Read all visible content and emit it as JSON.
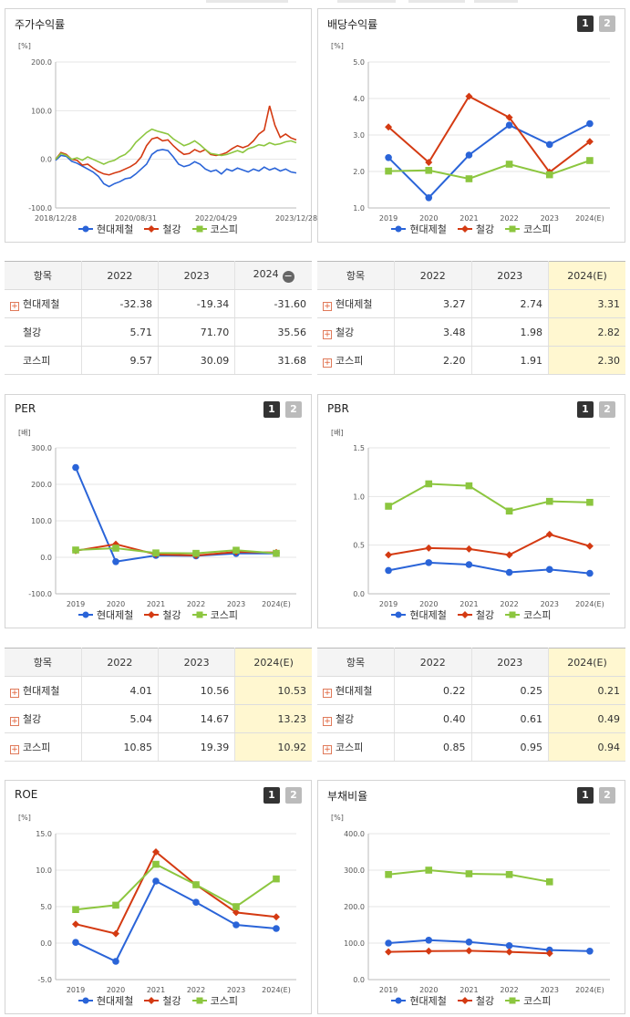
{
  "colors": {
    "hyundai": "#2a64d8",
    "steel": "#d43a12",
    "kospi": "#8cc63f"
  },
  "legend": [
    "현대제철",
    "철강",
    "코스피"
  ],
  "pager": [
    "1",
    "2"
  ],
  "table_header": {
    "label": "항목",
    "y1": "2022",
    "y2": "2023",
    "y3": "2024",
    "y3e": "2024(E)"
  },
  "tables": {
    "stock": [
      {
        "name": "현대제철",
        "v": [
          "-32.38",
          "-19.34",
          "-31.60"
        ],
        "plus": true
      },
      {
        "name": "철강",
        "v": [
          "5.71",
          "71.70",
          "35.56"
        ],
        "plus": false
      },
      {
        "name": "코스피",
        "v": [
          "9.57",
          "30.09",
          "31.68"
        ],
        "plus": false
      }
    ],
    "div": [
      {
        "name": "현대제철",
        "v": [
          "3.27",
          "2.74",
          "3.31"
        ],
        "plus": true
      },
      {
        "name": "철강",
        "v": [
          "3.48",
          "1.98",
          "2.82"
        ],
        "plus": true
      },
      {
        "name": "코스피",
        "v": [
          "2.20",
          "1.91",
          "2.30"
        ],
        "plus": true
      }
    ],
    "per": [
      {
        "name": "현대제철",
        "v": [
          "4.01",
          "10.56",
          "10.53"
        ],
        "plus": true
      },
      {
        "name": "철강",
        "v": [
          "5.04",
          "14.67",
          "13.23"
        ],
        "plus": true
      },
      {
        "name": "코스피",
        "v": [
          "10.85",
          "19.39",
          "10.92"
        ],
        "plus": true
      }
    ],
    "pbr": [
      {
        "name": "현대제철",
        "v": [
          "0.22",
          "0.25",
          "0.21"
        ],
        "plus": true
      },
      {
        "name": "철강",
        "v": [
          "0.40",
          "0.61",
          "0.49"
        ],
        "plus": true
      },
      {
        "name": "코스피",
        "v": [
          "0.85",
          "0.95",
          "0.94"
        ],
        "plus": true
      }
    ]
  },
  "chart_data": [
    {
      "id": "stock",
      "type": "line",
      "title": "주가수익률",
      "unit": "[%]",
      "ylim": [
        -100,
        200
      ],
      "yticks": [
        "200.0",
        "100.0",
        "0.0",
        "-100.0"
      ],
      "xticks": [
        "2018/12/28",
        "2020/08/31",
        "2022/04/29",
        "2023/12/28"
      ],
      "series": [
        {
          "name": "현대제철",
          "values": [
            -2,
            8,
            6,
            -4,
            -8,
            -14,
            -20,
            -26,
            -35,
            -50,
            -56,
            -50,
            -46,
            -40,
            -38,
            -30,
            -20,
            -10,
            10,
            18,
            20,
            18,
            5,
            -10,
            -15,
            -12,
            -5,
            -10,
            -20,
            -25,
            -22,
            -30,
            -20,
            -24,
            -18,
            -22,
            -26,
            -20,
            -24,
            -16,
            -22,
            -18,
            -24,
            -20,
            -26,
            -28
          ]
        },
        {
          "name": "철강",
          "values": [
            0,
            14,
            10,
            0,
            -2,
            -12,
            -10,
            -18,
            -25,
            -30,
            -32,
            -28,
            -25,
            -20,
            -15,
            -8,
            5,
            28,
            42,
            45,
            38,
            40,
            28,
            18,
            10,
            12,
            20,
            15,
            20,
            10,
            8,
            10,
            14,
            22,
            28,
            24,
            28,
            38,
            52,
            60,
            110,
            70,
            45,
            52,
            44,
            40
          ]
        },
        {
          "name": "코스피",
          "values": [
            0,
            12,
            8,
            0,
            3,
            -2,
            5,
            0,
            -5,
            -10,
            -5,
            -2,
            5,
            10,
            20,
            35,
            45,
            55,
            62,
            58,
            55,
            52,
            42,
            35,
            28,
            32,
            38,
            30,
            20,
            12,
            10,
            8,
            10,
            14,
            18,
            14,
            22,
            25,
            30,
            28,
            34,
            30,
            32,
            36,
            38,
            34
          ]
        }
      ]
    },
    {
      "id": "div",
      "type": "line",
      "title": "배당수익률",
      "unit": "[%]",
      "ylim": [
        1,
        5
      ],
      "yticks": [
        "5.0",
        "4.0",
        "3.0",
        "2.0",
        "1.0"
      ],
      "categories": [
        "2019",
        "2020",
        "2021",
        "2022",
        "2023",
        "2024(E)"
      ],
      "series": [
        {
          "name": "현대제철",
          "values": [
            2.38,
            1.28,
            2.45,
            3.27,
            2.74,
            3.31
          ]
        },
        {
          "name": "철강",
          "values": [
            3.22,
            2.25,
            4.06,
            3.48,
            1.98,
            2.82
          ]
        },
        {
          "name": "코스피",
          "values": [
            2.01,
            2.03,
            1.8,
            2.2,
            1.91,
            2.3
          ]
        }
      ]
    },
    {
      "id": "per",
      "type": "line",
      "title": "PER",
      "unit": "[배]",
      "ylim": [
        -100,
        300
      ],
      "yticks": [
        "300.0",
        "200.0",
        "100.0",
        "0.0",
        "-100.0"
      ],
      "categories": [
        "2019",
        "2020",
        "2021",
        "2022",
        "2023",
        "2024(E)"
      ],
      "series": [
        {
          "name": "현대제철",
          "values": [
            246,
            -12,
            5,
            4.01,
            10.56,
            10.53
          ]
        },
        {
          "name": "철강",
          "values": [
            18,
            36,
            8,
            5.04,
            14.67,
            13.23
          ]
        },
        {
          "name": "코스피",
          "values": [
            20,
            25,
            12,
            10.85,
            19.39,
            10.92
          ]
        }
      ]
    },
    {
      "id": "pbr",
      "type": "line",
      "title": "PBR",
      "unit": "[배]",
      "ylim": [
        0,
        1.5
      ],
      "yticks": [
        "1.5",
        "1.0",
        "0.5",
        "0.0"
      ],
      "categories": [
        "2019",
        "2020",
        "2021",
        "2022",
        "2023",
        "2024(E)"
      ],
      "series": [
        {
          "name": "현대제철",
          "values": [
            0.24,
            0.32,
            0.3,
            0.22,
            0.25,
            0.21
          ]
        },
        {
          "name": "철강",
          "values": [
            0.4,
            0.47,
            0.46,
            0.4,
            0.61,
            0.49
          ]
        },
        {
          "name": "코스피",
          "values": [
            0.9,
            1.13,
            1.11,
            0.85,
            0.95,
            0.94
          ]
        }
      ]
    },
    {
      "id": "roe",
      "type": "line",
      "title": "ROE",
      "unit": "[%]",
      "ylim": [
        -5,
        15
      ],
      "yticks": [
        "15.0",
        "10.0",
        "5.0",
        "0.0",
        "-5.0"
      ],
      "categories": [
        "2019",
        "2020",
        "2021",
        "2022",
        "2023",
        "2024(E)"
      ],
      "series": [
        {
          "name": "현대제철",
          "values": [
            0.1,
            -2.5,
            8.5,
            5.6,
            2.5,
            2.0
          ]
        },
        {
          "name": "철강",
          "values": [
            2.6,
            1.3,
            12.5,
            8.0,
            4.2,
            3.6
          ]
        },
        {
          "name": "코스피",
          "values": [
            4.6,
            5.2,
            10.8,
            8.0,
            5.0,
            8.8
          ]
        }
      ]
    },
    {
      "id": "debt",
      "type": "line",
      "title": "부채비율",
      "unit": "[%]",
      "ylim": [
        0,
        400
      ],
      "yticks": [
        "400.0",
        "300.0",
        "200.0",
        "100.0",
        "0.0"
      ],
      "categories": [
        "2019",
        "2020",
        "2021",
        "2022",
        "2023",
        "2024(E)"
      ],
      "series": [
        {
          "name": "현대제철",
          "values": [
            100,
            108,
            103,
            93,
            81,
            78
          ]
        },
        {
          "name": "철강",
          "values": [
            76,
            78,
            79,
            76,
            72,
            null
          ]
        },
        {
          "name": "코스피",
          "values": [
            288,
            300,
            290,
            288,
            268,
            null
          ]
        }
      ]
    }
  ]
}
